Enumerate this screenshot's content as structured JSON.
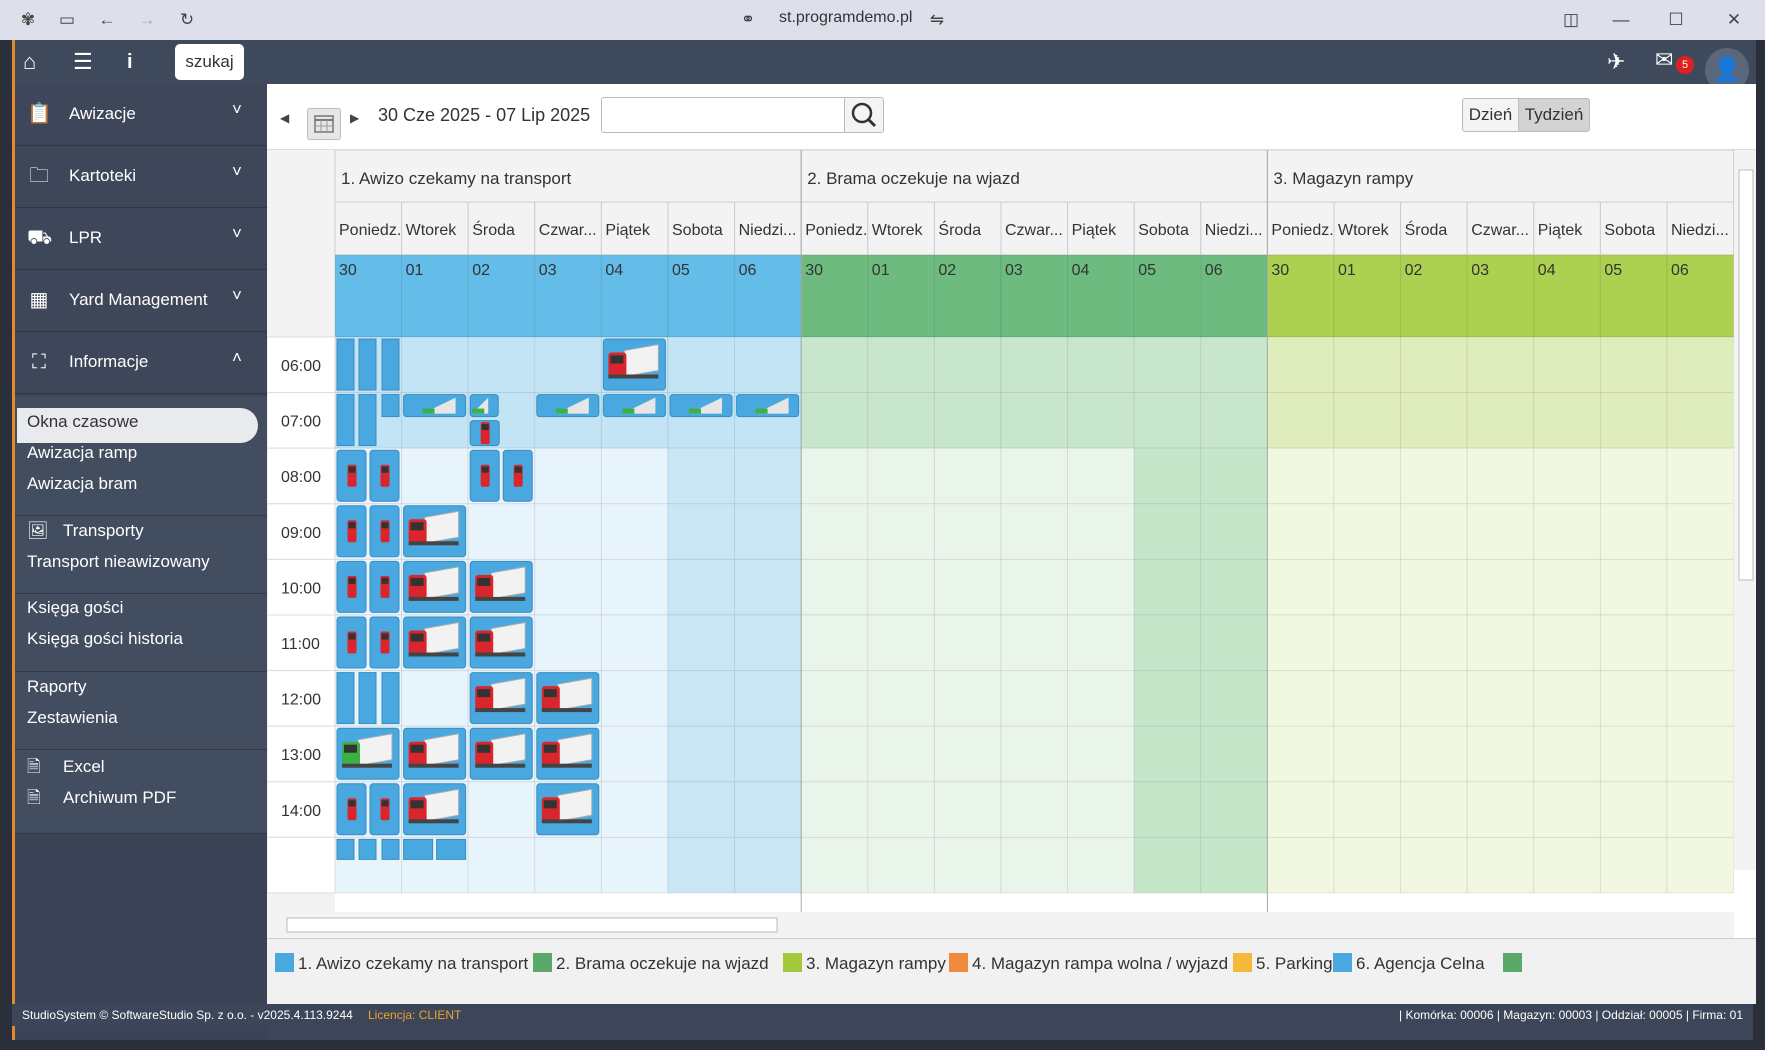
{
  "browser": {
    "url": "st.programdemo.pl"
  },
  "topbar": {
    "search_label": "szukaj",
    "mail_count": "5"
  },
  "sidebar": {
    "sections": [
      {
        "label": "Awizacje",
        "icon": "clipboard-icon",
        "chevron": "˅"
      },
      {
        "label": "Kartoteki",
        "icon": "folder-icon",
        "chevron": "˅"
      },
      {
        "label": "LPR",
        "icon": "truck-icon",
        "chevron": "˅"
      },
      {
        "label": "Yard Management",
        "icon": "checker-icon",
        "chevron": "˅"
      },
      {
        "label": "Informacje",
        "icon": "sitemap-icon",
        "chevron": "˄"
      }
    ],
    "sub_items": [
      {
        "label": "Okna czasowe",
        "active": true
      },
      {
        "label": "Awizacja ramp"
      },
      {
        "label": "Awizacja bram"
      },
      {
        "label": "Transporty",
        "icon": "image-icon"
      },
      {
        "label": "Transport nieawizowany"
      },
      {
        "label": "Księga gości"
      },
      {
        "label": "Księga gości historia"
      },
      {
        "label": "Raporty"
      },
      {
        "label": "Zestawienia"
      },
      {
        "label": "Excel",
        "icon": "excel-icon"
      },
      {
        "label": "Archiwum PDF",
        "icon": "pdf-icon"
      }
    ]
  },
  "toolbar": {
    "date_range": "30 Cze 2025 - 07 Lip 2025",
    "search_value": "",
    "view_day": "Dzień",
    "view_week": "Tydzień"
  },
  "calendar": {
    "groups": [
      {
        "name": "1. Awizo czekamy na transport",
        "color": "#64bce8",
        "light": "#c2e4f5",
        "pale": "#e7f4fb",
        "weekend": "#c9e6f5"
      },
      {
        "name": "2. Brama oczekuje na wjazd",
        "color": "#6dbb7f",
        "light": "#c7e6cc",
        "pale": "#e9f5ea",
        "weekend": "#c6e6ca"
      },
      {
        "name": "3. Magazyn rampy",
        "color": "#acd04f",
        "light": "#dfecbb",
        "pale": "#f1f7e0",
        "weekend": "#f1f7e0"
      }
    ],
    "days": [
      "Poniedziałek",
      "Wtorek",
      "Środa",
      "Czwartek",
      "Piątek",
      "Sobota",
      "Niedziela"
    ],
    "day_labels": [
      "Poniedz...",
      "Wtorek",
      "Środa",
      "Czwar...",
      "Piątek",
      "Sobota",
      "Niedzi..."
    ],
    "dates": [
      "30",
      "01",
      "02",
      "03",
      "04",
      "05",
      "06"
    ],
    "times": [
      "06:00",
      "07:00",
      "08:00",
      "09:00",
      "10:00",
      "11:00",
      "12:00",
      "13:00",
      "14:00"
    ]
  },
  "legend": [
    {
      "label": "1. Awizo czekamy na transport",
      "color": "#4aa8e0"
    },
    {
      "label": "2. Brama oczekuje na wjazd",
      "color": "#5aa96a"
    },
    {
      "label": "3. Magazyn rampy",
      "color": "#a3c93a"
    },
    {
      "label": "4. Magazyn rampa wolna / wyjazd",
      "color": "#f08a3c"
    },
    {
      "label": "5. Parking",
      "color": "#f5b93a"
    },
    {
      "label": "6. Agencja Celna",
      "color": "#4aa8e0"
    },
    {
      "label": "",
      "color": "#5aa96a"
    }
  ],
  "statusbar": {
    "copyright": "StudioSystem © SoftwareStudio Sp. z o.o. - v2025.4.113.9244",
    "license": "Licencja: CLIENT",
    "right": "| Komórka: 00006 | Magazyn: 00003 | Oddział: 00005 | Firma: 01"
  }
}
